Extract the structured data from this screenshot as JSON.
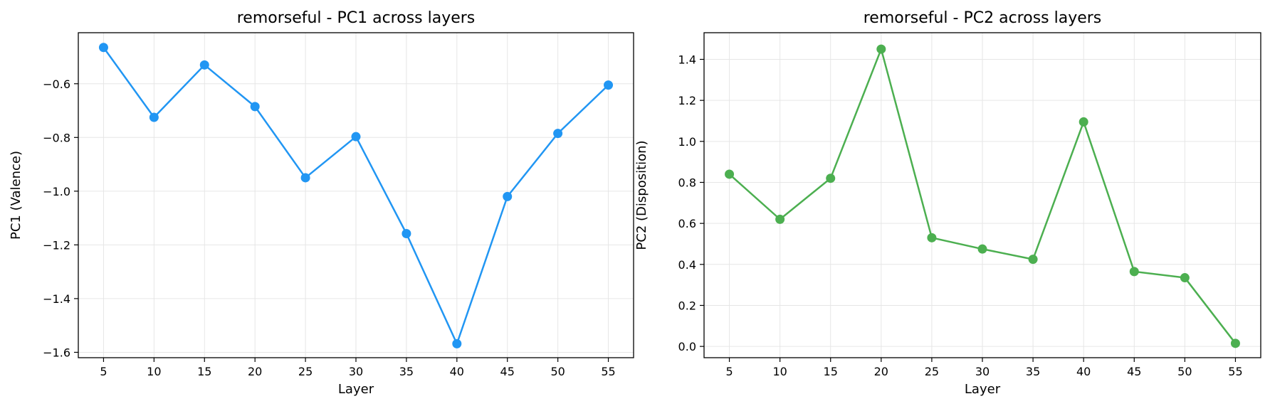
{
  "chart_data": [
    {
      "type": "line",
      "title": "remorseful - PC1 across layers",
      "xlabel": "Layer",
      "ylabel": "PC1 (Valence)",
      "x": [
        5,
        10,
        15,
        20,
        25,
        30,
        35,
        40,
        45,
        50,
        55
      ],
      "xticks": [
        "5",
        "10",
        "15",
        "20",
        "25",
        "30",
        "35",
        "40",
        "45",
        "50",
        "55"
      ],
      "xlim": [
        2.5,
        57.5
      ],
      "ylim": [
        -1.62,
        -0.41
      ],
      "yticks": [
        "−1.6",
        "−1.4",
        "−1.2",
        "−1.0",
        "−0.8",
        "−0.6"
      ],
      "ytick_values": [
        -1.6,
        -1.4,
        -1.2,
        -1.0,
        -0.8,
        -0.6
      ],
      "grid": true,
      "series": [
        {
          "values": [
            -0.465,
            -0.725,
            -0.53,
            -0.685,
            -0.95,
            -0.797,
            -1.158,
            -1.568,
            -1.02,
            -0.785,
            -0.605
          ],
          "color": "#2196F3"
        }
      ]
    },
    {
      "type": "line",
      "title": "remorseful - PC2 across layers",
      "xlabel": "Layer",
      "ylabel": "PC2 (Disposition)",
      "x": [
        5,
        10,
        15,
        20,
        25,
        30,
        35,
        40,
        45,
        50,
        55
      ],
      "xticks": [
        "5",
        "10",
        "15",
        "20",
        "25",
        "30",
        "35",
        "40",
        "45",
        "50",
        "55"
      ],
      "xlim": [
        2.5,
        57.5
      ],
      "ylim": [
        -0.055,
        1.53
      ],
      "yticks": [
        "0.0",
        "0.2",
        "0.4",
        "0.6",
        "0.8",
        "1.0",
        "1.2",
        "1.4"
      ],
      "ytick_values": [
        0.0,
        0.2,
        0.4,
        0.6,
        0.8,
        1.0,
        1.2,
        1.4
      ],
      "grid": true,
      "series": [
        {
          "values": [
            0.84,
            0.62,
            0.82,
            1.45,
            0.53,
            0.475,
            0.425,
            1.095,
            0.365,
            0.335,
            0.015
          ],
          "color": "#4CAF50"
        }
      ]
    }
  ]
}
